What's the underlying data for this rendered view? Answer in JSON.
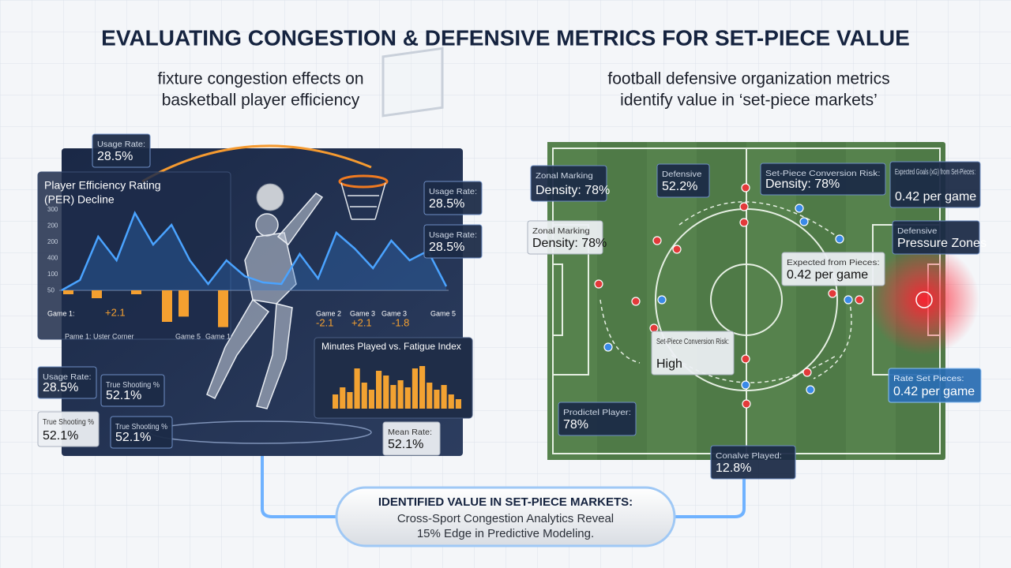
{
  "title": "EVALUATING CONGESTION & DEFENSIVE METRICS FOR SET-PIECE VALUE",
  "left": {
    "subtitle": [
      "fixture congestion effects on",
      "basketball player efficiency"
    ],
    "per_chart": {
      "title": [
        "Player Efficiency Rating",
        "(PER) Decline"
      ],
      "ytick_labels": [
        300,
        200,
        200,
        400,
        100,
        50
      ],
      "ylim": [
        0,
        300
      ],
      "line": [
        0,
        39,
        204,
        114,
        294,
        174,
        249,
        114,
        24,
        114,
        54,
        30,
        24,
        138,
        45,
        219,
        159,
        84,
        189,
        114,
        150,
        15
      ],
      "bars": [
        -15,
        -30,
        -15,
        -120,
        -100,
        -140
      ],
      "annotations": [
        "Game 1:",
        "+2.1",
        "Pame 1: Uster Corner",
        "Game 5",
        "Game 1",
        "Game 2",
        "-2.1",
        "Game 3",
        "+2.1",
        "Game 3",
        "-1.8",
        "Game 5"
      ]
    },
    "minutes_chart": {
      "title": "Minutes Played vs. Fatigue Index",
      "values": [
        30,
        45,
        35,
        85,
        55,
        40,
        80,
        70,
        50,
        60,
        45,
        85,
        90,
        55,
        40,
        50,
        30,
        20
      ]
    },
    "callouts": [
      {
        "label": "Usage Rate:",
        "value": "28.5%"
      },
      {
        "label": "Usage Rate:",
        "value": "28.5%"
      },
      {
        "label": "Usage Rate:",
        "value": "28.5%"
      },
      {
        "label": "Usage Rate:",
        "value": "28.5%"
      },
      {
        "label": "True Shooting %",
        "value": "52.1%"
      },
      {
        "label": "True Shooting %",
        "value": "52.1%"
      },
      {
        "label": "True Shooting %",
        "value": "52.1%"
      },
      {
        "label": "Mean Rate:",
        "value": "52.1%"
      }
    ]
  },
  "right": {
    "subtitle": [
      "football defensive organization metrics",
      "identify value in ‘set-piece markets’"
    ],
    "callouts": [
      {
        "label": "Zonal Marking",
        "value": "Density: 78%"
      },
      {
        "label": "Defensive",
        "value": "52.2%"
      },
      {
        "label": "Set-Piece Conversion Risk:",
        "value": "Density: 78%"
      },
      {
        "label": "Expected Goals (xG) from Set-Pieces:",
        "value": "0.42 per game"
      },
      {
        "label": "Zonal Marking",
        "value": "Density: 78%"
      },
      {
        "label": "Defensive",
        "value": "Pressure Zones"
      },
      {
        "label": "Expected from Pieces:",
        "value": "0.42 per game"
      },
      {
        "label": "Set-Piece Conversion Risk:",
        "value": "High"
      },
      {
        "label": "Rate Set Pieces:",
        "value": "0.42 per game"
      },
      {
        "label": "Prodictel Player:",
        "value": "78%"
      },
      {
        "label": "Conalve Played:",
        "value": "12.8%"
      }
    ]
  },
  "banner": {
    "heading": "IDENTIFIED VALUE IN SET-PIECE MARKETS:",
    "lines": [
      "Cross-Sport Congestion Analytics Reveal",
      "15% Edge in Predictive Modeling."
    ]
  }
}
